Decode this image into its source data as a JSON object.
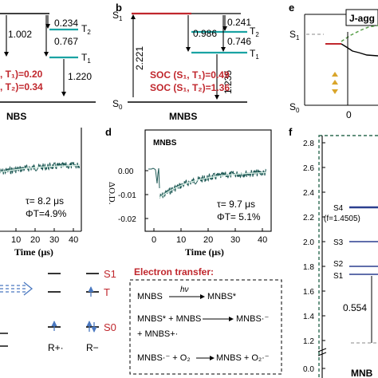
{
  "panel_a": {
    "gap_top": "0.234",
    "gap_left": "1.002",
    "gap_mid": "0.767",
    "level_t2": "T",
    "level_t2_sub": "2",
    "level_t1": "T",
    "level_t1_sub": "1",
    "soc1": ", T₁)=0.20",
    "soc2": ", T₂)=0.34",
    "gap_bottom": "1.220",
    "name": "NBS"
  },
  "panel_b": {
    "letter": "b",
    "s1": "S",
    "s1_sub": "1",
    "s0": "S",
    "s0_sub": "0",
    "gap_s1s0": "2.221",
    "gap_986": "0.986",
    "gap_241": "0.241",
    "gap_746": "0.746",
    "gap_1235": "1.235",
    "t2": "T",
    "t2_sub": "2",
    "t1": "T",
    "t1_sub": "1",
    "soc1": "SOC (S₁, T₁)=0.49",
    "soc2": "SOC (S₁, T₂)=1.36",
    "name": "MNBS"
  },
  "panel_c": {
    "tau": "τ= 8.2 μs",
    "phi": "ΦT=4.9%",
    "xlabel": "Time (μs)",
    "xticks": [
      "10",
      "20",
      "30",
      "40"
    ]
  },
  "panel_d": {
    "letter": "d",
    "title": "MNBS",
    "ylabel": "ΔO.D.",
    "yticks": [
      "0.00",
      "-0.01",
      "-0.02"
    ],
    "xticks": [
      "0",
      "10",
      "20",
      "30",
      "40"
    ],
    "xlabel": "Time (μs)",
    "tau": "τ= 9.7 μs",
    "phi": "ΦT= 5.1%"
  },
  "panel_e": {
    "letter": "e",
    "label": "J-agg",
    "s1": "S",
    "s1_sub": "1",
    "s0": "S",
    "s0_sub": "0",
    "xtick": "0"
  },
  "panel_f": {
    "letter": "f",
    "yticks": [
      "2.8",
      "2.6",
      "2.4",
      "2.2",
      "2.0",
      "1.8",
      "1.6",
      "1.4",
      "1.2",
      "0.0"
    ],
    "s4": "S4",
    "s4_f": "(f=1.4505)",
    "s3": "S3",
    "s2": "S2",
    "s1": "S1",
    "gap": "0.554",
    "name": "MNB"
  },
  "panel_bottom_left": {
    "s1": "S1",
    "t": "T",
    "s0": "S0",
    "r_plus": "R+·",
    "r_minus": "R−"
  },
  "electron_transfer": {
    "title": "Electron transfer:",
    "r1_left": "MNBS",
    "r1_arrow": "hν",
    "r1_right": "MNBS*",
    "r2_left": "MNBS* + MNBS",
    "r2_right": "MNBS·⁻",
    "r2_cont": "+ MNBS+·",
    "r3_left": "MNBS·⁻ + O₂",
    "r3_right": "MNBS + O₂·⁻"
  },
  "colors": {
    "teal_level": "#1aa3a3",
    "red_level": "#c0272d",
    "decay_noise": "#1f5a56",
    "fit_line": "#d8f0e6",
    "soc_text": "#c0272d",
    "navy_level": "#2b3f8f",
    "dashed_box": "#2e6b52",
    "blue_arrow": "#4a78c0",
    "gold_arrow": "#d9a52a"
  }
}
